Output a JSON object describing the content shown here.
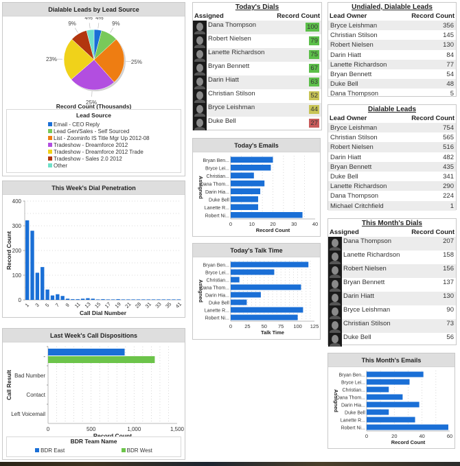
{
  "panels": {
    "lead_source": {
      "title": "Dialable Leads by Lead Source",
      "axis_caption": "Record Count (Thousands)",
      "legend_title": "Lead Source"
    },
    "dial_penetration": {
      "title": "This Week's Dial Penetration"
    },
    "call_dispositions": {
      "title": "Last Week's Call Dispositions",
      "legend_title": "BDR Team Name"
    },
    "todays_emails": {
      "title": "Today's Emails"
    },
    "todays_talk_time": {
      "title": "Today's Talk Time"
    },
    "month_emails": {
      "title": "This Month's Emails"
    }
  },
  "tables": {
    "todays_dials": {
      "title": "Today's Dials",
      "col1": "Assigned",
      "col2": "Record Count",
      "rows": [
        {
          "name": "Dana Thompson",
          "value": "100",
          "color": "#5cbf4a"
        },
        {
          "name": "Robert Nielsen",
          "value": "79",
          "color": "#5cbf4a"
        },
        {
          "name": "Lanette Richardson",
          "value": "75",
          "color": "#5cbf4a"
        },
        {
          "name": "Bryan Bennett",
          "value": "67",
          "color": "#5cbf4a"
        },
        {
          "name": "Darin Hiatt",
          "value": "63",
          "color": "#5cbf4a"
        },
        {
          "name": "Christian Stilson",
          "value": "52",
          "color": "#c8c456"
        },
        {
          "name": "Bryce Leishman",
          "value": "44",
          "color": "#c8c456"
        },
        {
          "name": "Duke Bell",
          "value": "27",
          "color": "#c85a5a"
        }
      ]
    },
    "undialed_leads": {
      "title": "Undialed, Dialable Leads",
      "col1": "Lead Owner",
      "col2": "Record Count",
      "rows": [
        {
          "name": "Bryce Leishman",
          "value": "356"
        },
        {
          "name": "Christian Stilson",
          "value": "145"
        },
        {
          "name": "Robert Nielsen",
          "value": "130"
        },
        {
          "name": "Darin Hiatt",
          "value": "84"
        },
        {
          "name": "Lanette Richardson",
          "value": "77"
        },
        {
          "name": "Bryan Bennett",
          "value": "54"
        },
        {
          "name": "Duke Bell",
          "value": "48"
        },
        {
          "name": "Dana Thompson",
          "value": "5"
        }
      ]
    },
    "dialable_leads": {
      "title": "Dialable Leads",
      "col1": "Lead Owner",
      "col2": "Record Count",
      "rows": [
        {
          "name": "Bryce Leishman",
          "value": "754"
        },
        {
          "name": "Christian Stilson",
          "value": "565"
        },
        {
          "name": "Robert Nielsen",
          "value": "516"
        },
        {
          "name": "Darin Hiatt",
          "value": "482"
        },
        {
          "name": "Bryan Bennett",
          "value": "435"
        },
        {
          "name": "Duke Bell",
          "value": "341"
        },
        {
          "name": "Lanette Richardson",
          "value": "290"
        },
        {
          "name": "Dana Thompson",
          "value": "224"
        },
        {
          "name": "Michael Critchfield",
          "value": "1"
        }
      ]
    },
    "month_dials": {
      "title": "This Month's Dials",
      "col1": "Assigned",
      "col2": "Record Count",
      "rows": [
        {
          "name": "Dana Thompson",
          "value": "207"
        },
        {
          "name": "Lanette Richardson",
          "value": "158"
        },
        {
          "name": "Robert Nielsen",
          "value": "156"
        },
        {
          "name": "Bryan Bennett",
          "value": "137"
        },
        {
          "name": "Darin Hiatt",
          "value": "130"
        },
        {
          "name": "Bryce Leishman",
          "value": "90"
        },
        {
          "name": "Christian Stilson",
          "value": "73"
        },
        {
          "name": "Duke Bell",
          "value": "56"
        }
      ]
    }
  },
  "chart_data": [
    {
      "id": "lead_source",
      "type": "pie",
      "title": "Dialable Leads by Lead Source",
      "xlabel": "Record Count (Thousands)",
      "legend_title": "Lead Source",
      "legend_position": "bottom",
      "slices": [
        {
          "label": "Email - CEO Reply",
          "value": 4,
          "color": "#1a6fd6"
        },
        {
          "label": "Lead Gen/Sales - Self Sourced",
          "value": 9,
          "color": "#79c95a"
        },
        {
          "label": "List - Zoominfo IS Title Mgr Up 2012-08",
          "value": 25,
          "color": "#ee7d12"
        },
        {
          "label": "Tradeshow - Dreamforce 2012",
          "value": 25,
          "color": "#b24ee0"
        },
        {
          "label": "Tradeshow - Dreamforce 2012 Trade",
          "value": 23,
          "color": "#f0d21a"
        },
        {
          "label": "Tradeshow - Sales 2.0 2012",
          "value": 9,
          "color": "#b2360e"
        },
        {
          "label": "Other",
          "value": 4,
          "color": "#6fe0c8"
        }
      ]
    },
    {
      "id": "dial_penetration",
      "type": "bar",
      "title": "This Week's Dial Penetration",
      "xlabel": "Call Dial Number",
      "ylabel": "Record Count",
      "ylim": [
        0,
        400
      ],
      "yticks": [
        0,
        100,
        200,
        300,
        400
      ],
      "xtick_labels": [
        "1",
        "3",
        "5",
        "7",
        "9",
        "11",
        "13",
        "15",
        "17",
        "19",
        "21",
        "28",
        "31",
        "33",
        "35",
        "41"
      ],
      "categories": [
        "1",
        "2",
        "3",
        "4",
        "5",
        "6",
        "7",
        "8",
        "9",
        "10",
        "11",
        "12",
        "13",
        "14",
        "15",
        "16",
        "17",
        "18",
        "19",
        "20",
        "21",
        "22",
        "23",
        "24",
        "25",
        "26",
        "27",
        "28",
        "29",
        "30",
        "31"
      ],
      "values": [
        322,
        280,
        110,
        133,
        42,
        18,
        23,
        16,
        5,
        3,
        3,
        5,
        7,
        5,
        2,
        3,
        2,
        2,
        3,
        2,
        2,
        2,
        2,
        2,
        2,
        2,
        2,
        2,
        2,
        2,
        2
      ],
      "grid": true,
      "color": "#1a6fd6"
    },
    {
      "id": "call_dispositions",
      "type": "bar",
      "orientation": "horizontal",
      "title": "Last Week's Call Dispositions",
      "xlabel": "Record Count",
      "ylabel": "Call Result",
      "xlim": [
        0,
        1500
      ],
      "xticks": [
        "0",
        "500",
        "1,000",
        "1,500"
      ],
      "categories": [
        "-",
        "Bad Number",
        "Contact",
        "Left Voicemail"
      ],
      "legend_title": "BDR Team Name",
      "series": [
        {
          "name": "BDR East",
          "color": "#1a6fd6",
          "values": [
            890,
            0,
            0,
            0
          ]
        },
        {
          "name": "BDR West",
          "color": "#6cc44a",
          "values": [
            1240,
            0,
            0,
            0
          ]
        }
      ],
      "grid": true
    },
    {
      "id": "todays_emails",
      "type": "bar",
      "orientation": "horizontal",
      "title": "Today's Emails",
      "xlabel": "Record Count",
      "ylabel": "Assigned",
      "xlim": [
        0,
        40
      ],
      "xticks": [
        "0",
        "10",
        "20",
        "30",
        "40"
      ],
      "categories": [
        "Bryan Ben...",
        "Bryce Lei...",
        "Christian...",
        "Dana Thom...",
        "Darin Hia...",
        "Duke Bell",
        "Lanette R...",
        "Robert Ni..."
      ],
      "values": [
        20,
        19,
        11,
        16,
        14,
        13,
        13,
        34
      ],
      "grid": true
    },
    {
      "id": "todays_talk_time",
      "type": "bar",
      "orientation": "horizontal",
      "title": "Today's Talk Time",
      "xlabel": "Talk Time",
      "ylabel": "Assigned",
      "xlim": [
        0,
        125
      ],
      "xticks": [
        "0",
        "25",
        "50",
        "75",
        "100",
        "125"
      ],
      "categories": [
        "Bryan Ben...",
        "Bryce Lei...",
        "Christian...",
        "Dana Thom...",
        "Darin Hia...",
        "Duke Bell",
        "Lanette R...",
        "Robert Ni..."
      ],
      "values": [
        116,
        65,
        13,
        105,
        45,
        24,
        108,
        100
      ],
      "grid": true
    },
    {
      "id": "month_emails",
      "type": "bar",
      "orientation": "horizontal",
      "title": "This Month's Emails",
      "xlabel": "Record Count",
      "ylabel": "Assigned",
      "xlim": [
        0,
        60
      ],
      "xticks": [
        "0",
        "20",
        "40",
        "60"
      ],
      "categories": [
        "Bryan Ben...",
        "Bryce Lei...",
        "Christian...",
        "Dana Thom...",
        "Darin Hia...",
        "Duke Bell",
        "Lanette R...",
        "Robert Ni..."
      ],
      "values": [
        41,
        31,
        16,
        26,
        38,
        16,
        35,
        59
      ],
      "grid": true
    }
  ]
}
